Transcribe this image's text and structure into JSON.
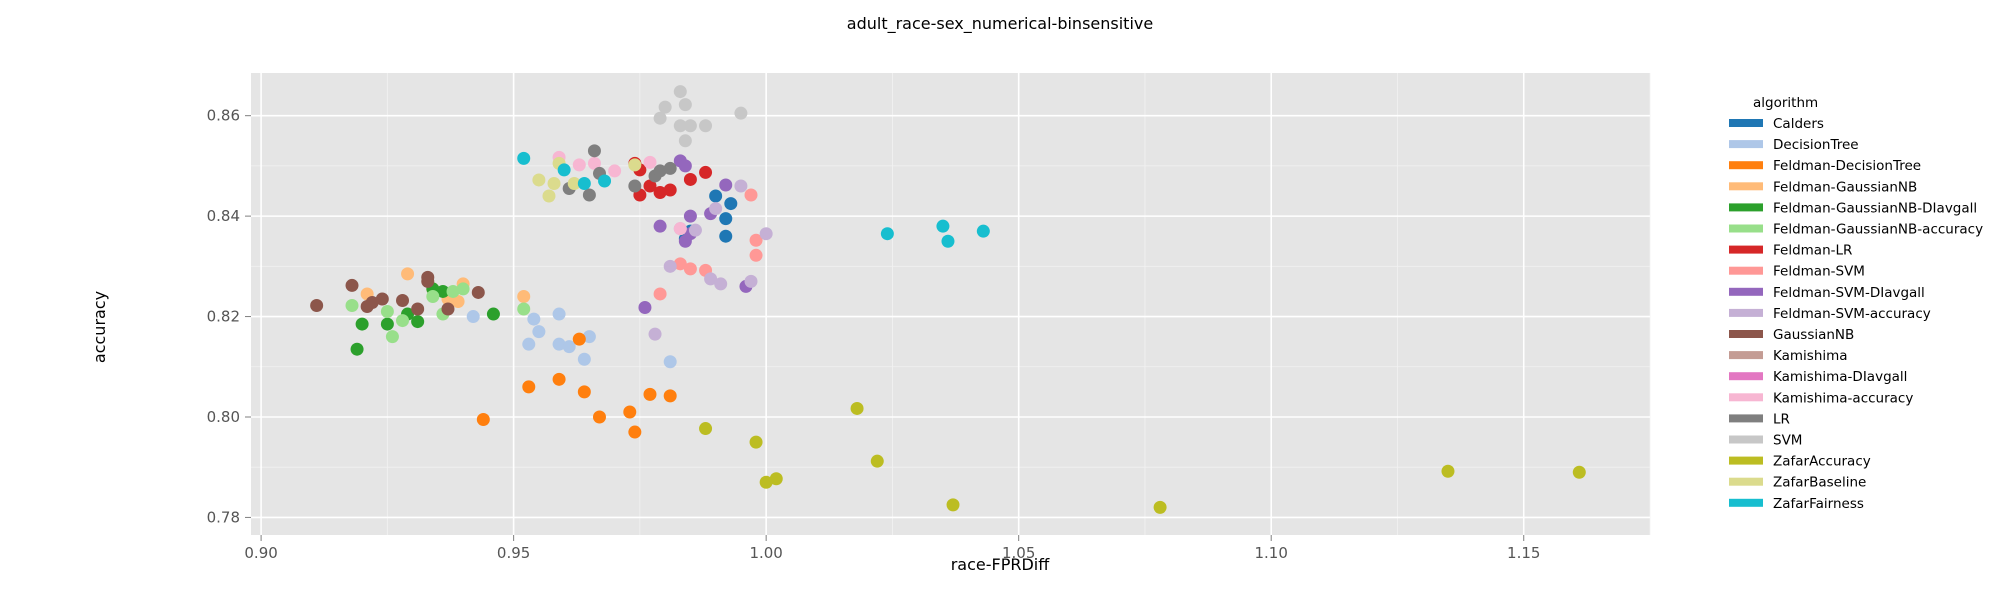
{
  "chart_data": {
    "type": "scatter",
    "title": "adult_race-sex_numerical-binsensitive",
    "xlabel": "race-FPRDiff",
    "ylabel": "accuracy",
    "xlim": [
      0.898,
      1.175
    ],
    "ylim": [
      0.7765,
      0.8685
    ],
    "xticks": [
      0.9,
      0.95,
      1.0,
      1.05,
      1.1,
      1.15
    ],
    "xtick_labels": [
      "0.90",
      "0.95",
      "1.00",
      "1.05",
      "1.10",
      "1.15"
    ],
    "yticks": [
      0.78,
      0.8,
      0.82,
      0.84,
      0.86
    ],
    "ytick_labels": [
      "0.78",
      "0.80",
      "0.82",
      "0.84",
      "0.86"
    ],
    "grid": true,
    "legend_title": "algorithm",
    "legend_position": "right",
    "series": [
      {
        "name": "Calders",
        "color": "#1f77b4",
        "points": [
          [
            0.984,
            0.8355
          ],
          [
            0.99,
            0.844
          ],
          [
            0.992,
            0.8395
          ],
          [
            0.993,
            0.8425
          ],
          [
            0.992,
            0.836
          ],
          [
            0.985,
            0.837
          ]
        ]
      },
      {
        "name": "DecisionTree",
        "color": "#aec7e8",
        "points": [
          [
            0.942,
            0.82
          ],
          [
            0.954,
            0.8195
          ],
          [
            0.955,
            0.817
          ],
          [
            0.953,
            0.8145
          ],
          [
            0.959,
            0.8145
          ],
          [
            0.961,
            0.814
          ],
          [
            0.959,
            0.8205
          ],
          [
            0.965,
            0.816
          ],
          [
            0.964,
            0.8115
          ],
          [
            0.981,
            0.811
          ]
        ]
      },
      {
        "name": "Feldman-DecisionTree",
        "color": "#ff7f0e",
        "points": [
          [
            0.944,
            0.7995
          ],
          [
            0.953,
            0.806
          ],
          [
            0.959,
            0.8075
          ],
          [
            0.963,
            0.8155
          ],
          [
            0.964,
            0.805
          ],
          [
            0.967,
            0.8
          ],
          [
            0.973,
            0.801
          ],
          [
            0.974,
            0.797
          ],
          [
            0.977,
            0.8045
          ],
          [
            0.981,
            0.8042
          ]
        ]
      },
      {
        "name": "Feldman-GaussianNB",
        "color": "#ffbb78",
        "points": [
          [
            0.921,
            0.8245
          ],
          [
            0.929,
            0.8285
          ],
          [
            0.934,
            0.8255
          ],
          [
            0.937,
            0.8235
          ],
          [
            0.94,
            0.8265
          ],
          [
            0.939,
            0.823
          ],
          [
            0.952,
            0.824
          ]
        ]
      },
      {
        "name": "Feldman-GaussianNB-DIavgall",
        "color": "#2ca02c",
        "points": [
          [
            0.919,
            0.8135
          ],
          [
            0.92,
            0.8185
          ],
          [
            0.925,
            0.8185
          ],
          [
            0.929,
            0.8205
          ],
          [
            0.931,
            0.819
          ],
          [
            0.934,
            0.8255
          ],
          [
            0.936,
            0.825
          ],
          [
            0.946,
            0.8205
          ]
        ]
      },
      {
        "name": "Feldman-GaussianNB-accuracy",
        "color": "#98df8a",
        "points": [
          [
            0.918,
            0.8222
          ],
          [
            0.925,
            0.821
          ],
          [
            0.926,
            0.816
          ],
          [
            0.928,
            0.8192
          ],
          [
            0.934,
            0.824
          ],
          [
            0.936,
            0.8205
          ],
          [
            0.938,
            0.825
          ],
          [
            0.94,
            0.8255
          ],
          [
            0.952,
            0.8215
          ]
        ]
      },
      {
        "name": "Feldman-LR",
        "color": "#d62728",
        "points": [
          [
            0.974,
            0.8505
          ],
          [
            0.975,
            0.8492
          ],
          [
            0.975,
            0.8442
          ],
          [
            0.977,
            0.846
          ],
          [
            0.979,
            0.8447
          ],
          [
            0.981,
            0.8452
          ],
          [
            0.985,
            0.8473
          ],
          [
            0.988,
            0.8487
          ]
        ]
      },
      {
        "name": "Feldman-SVM",
        "color": "#ff9896",
        "points": [
          [
            0.979,
            0.8245
          ],
          [
            0.983,
            0.8305
          ],
          [
            0.985,
            0.8295
          ],
          [
            0.988,
            0.8292
          ],
          [
            0.998,
            0.8352
          ],
          [
            0.998,
            0.8322
          ],
          [
            0.997,
            0.8442
          ]
        ]
      },
      {
        "name": "Feldman-SVM-DIavgall",
        "color": "#9467bd",
        "points": [
          [
            0.976,
            0.8218
          ],
          [
            0.979,
            0.838
          ],
          [
            0.983,
            0.851
          ],
          [
            0.984,
            0.85
          ],
          [
            0.985,
            0.84
          ],
          [
            0.984,
            0.835
          ],
          [
            0.985,
            0.8365
          ],
          [
            0.989,
            0.8405
          ],
          [
            0.992,
            0.8462
          ],
          [
            0.996,
            0.826
          ]
        ]
      },
      {
        "name": "Feldman-SVM-accuracy",
        "color": "#c5b0d5",
        "points": [
          [
            0.978,
            0.8165
          ],
          [
            0.981,
            0.83
          ],
          [
            0.983,
            0.8375
          ],
          [
            0.986,
            0.8372
          ],
          [
            0.989,
            0.8275
          ],
          [
            0.99,
            0.8415
          ],
          [
            0.991,
            0.8265
          ],
          [
            0.995,
            0.846
          ],
          [
            0.997,
            0.827
          ],
          [
            1.0,
            0.8365
          ]
        ]
      },
      {
        "name": "GaussianNB",
        "color": "#8c564b",
        "points": [
          [
            0.911,
            0.8222
          ],
          [
            0.918,
            0.8262
          ],
          [
            0.921,
            0.822
          ],
          [
            0.922,
            0.8228
          ],
          [
            0.924,
            0.8235
          ],
          [
            0.928,
            0.8232
          ],
          [
            0.931,
            0.8215
          ],
          [
            0.933,
            0.827
          ],
          [
            0.933,
            0.8278
          ],
          [
            0.937,
            0.8215
          ],
          [
            0.943,
            0.8248
          ]
        ]
      },
      {
        "name": "Kamishima",
        "color": "#c49c94",
        "points": []
      },
      {
        "name": "Kamishima-DIavgall",
        "color": "#e377c2",
        "points": []
      },
      {
        "name": "Kamishima-accuracy",
        "color": "#f7b6d2",
        "points": [
          [
            0.959,
            0.8517
          ],
          [
            0.963,
            0.8502
          ],
          [
            0.966,
            0.8505
          ],
          [
            0.97,
            0.849
          ],
          [
            0.977,
            0.8507
          ],
          [
            0.983,
            0.8375
          ]
        ]
      },
      {
        "name": "LR",
        "color": "#7f7f7f",
        "points": [
          [
            0.961,
            0.8455
          ],
          [
            0.965,
            0.8442
          ],
          [
            0.966,
            0.853
          ],
          [
            0.967,
            0.8485
          ],
          [
            0.974,
            0.846
          ],
          [
            0.978,
            0.848
          ],
          [
            0.979,
            0.849
          ],
          [
            0.981,
            0.8495
          ]
        ]
      },
      {
        "name": "SVM",
        "color": "#c7c7c7",
        "points": [
          [
            0.979,
            0.8595
          ],
          [
            0.98,
            0.8617
          ],
          [
            0.983,
            0.8648
          ],
          [
            0.984,
            0.8622
          ],
          [
            0.983,
            0.858
          ],
          [
            0.985,
            0.858
          ],
          [
            0.988,
            0.858
          ],
          [
            0.984,
            0.855
          ],
          [
            0.995,
            0.8605
          ]
        ]
      },
      {
        "name": "ZafarAccuracy",
        "color": "#bcbd22",
        "points": [
          [
            0.988,
            0.7977
          ],
          [
            0.998,
            0.795
          ],
          [
            1.0,
            0.787
          ],
          [
            1.002,
            0.7877
          ],
          [
            1.018,
            0.8017
          ],
          [
            1.022,
            0.7912
          ],
          [
            1.037,
            0.7825
          ],
          [
            1.078,
            0.782
          ],
          [
            1.135,
            0.7892
          ],
          [
            1.161,
            0.789
          ]
        ]
      },
      {
        "name": "ZafarBaseline",
        "color": "#dbdb8d",
        "points": [
          [
            0.955,
            0.8472
          ],
          [
            0.957,
            0.844
          ],
          [
            0.958,
            0.8465
          ],
          [
            0.959,
            0.8505
          ],
          [
            0.962,
            0.8465
          ],
          [
            0.974,
            0.8502
          ]
        ]
      },
      {
        "name": "ZafarFairness",
        "color": "#17becf",
        "points": [
          [
            0.952,
            0.8515
          ],
          [
            0.96,
            0.8492
          ],
          [
            0.964,
            0.8465
          ],
          [
            0.968,
            0.847
          ],
          [
            1.024,
            0.8365
          ],
          [
            1.035,
            0.838
          ],
          [
            1.036,
            0.835
          ],
          [
            1.043,
            0.837
          ]
        ]
      }
    ]
  }
}
